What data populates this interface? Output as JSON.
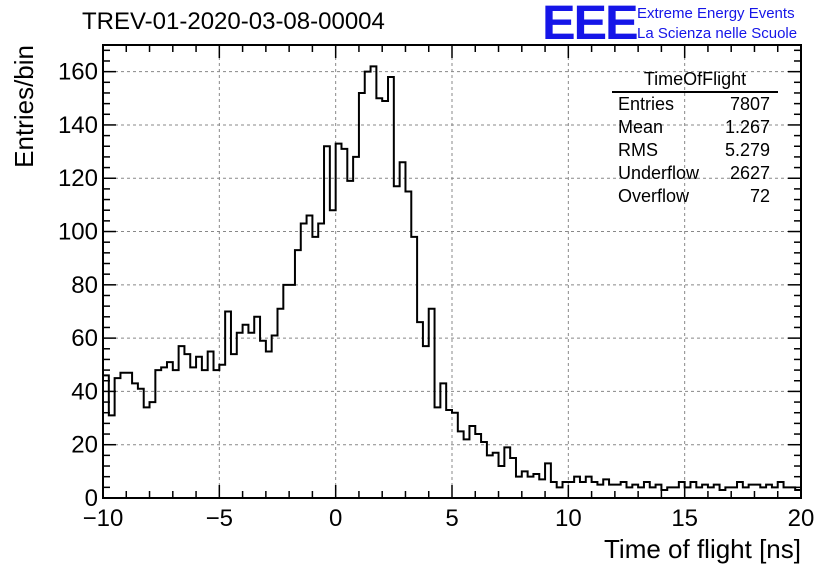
{
  "header": {
    "title": "TREV-01-2020-03-08-00004",
    "logo_text": "EEE",
    "logo_line1": "Extreme Energy Events",
    "logo_line2": "La Scienza nelle Scuole",
    "logo_color": "#1515e8"
  },
  "stats_box": {
    "title": "TimeOfFlight",
    "rows": [
      {
        "label": "Entries",
        "value": "7807"
      },
      {
        "label": "Mean",
        "value": "1.267"
      },
      {
        "label": "RMS",
        "value": "5.279"
      },
      {
        "label": "Underflow",
        "value": "2627"
      },
      {
        "label": "Overflow",
        "value": "72"
      }
    ]
  },
  "chart_data": {
    "type": "histogram",
    "title": "TREV-01-2020-03-08-00004",
    "xlabel": "Time of flight [ns]",
    "ylabel": "Entries/bin",
    "xlim": [
      -10,
      20
    ],
    "ylim": [
      0,
      170
    ],
    "grid": true,
    "bin_width": 0.25,
    "x_start": -10,
    "xticks": [
      -10,
      -5,
      0,
      5,
      10,
      15,
      20
    ],
    "yticks": [
      0,
      20,
      40,
      60,
      80,
      100,
      120,
      140,
      160
    ],
    "values": [
      46,
      31,
      45,
      47,
      47,
      43,
      41,
      34,
      36,
      48,
      49,
      51,
      48,
      57,
      54,
      49,
      53,
      48,
      55,
      48,
      50,
      70,
      54,
      62,
      65,
      62,
      68,
      59,
      55,
      61,
      71,
      80,
      80,
      93,
      103,
      106,
      98,
      103,
      132,
      108,
      133,
      131,
      119,
      128,
      152,
      160,
      162,
      150,
      149,
      158,
      117,
      126,
      115,
      98,
      66,
      57,
      71,
      34,
      43,
      33,
      32,
      25,
      22,
      27,
      24,
      21,
      16,
      17,
      12,
      19,
      15,
      8,
      10,
      8,
      9,
      7,
      13,
      6,
      4,
      6,
      6,
      8,
      6,
      8,
      6,
      5,
      7,
      5,
      5,
      6,
      4,
      5,
      4,
      6,
      4,
      5,
      3,
      4,
      4,
      6,
      4,
      6,
      4,
      5,
      4,
      5,
      3,
      4,
      4,
      6,
      4,
      5,
      5,
      4,
      5,
      4,
      6,
      4,
      4,
      3
    ],
    "line_color": "#000000"
  }
}
